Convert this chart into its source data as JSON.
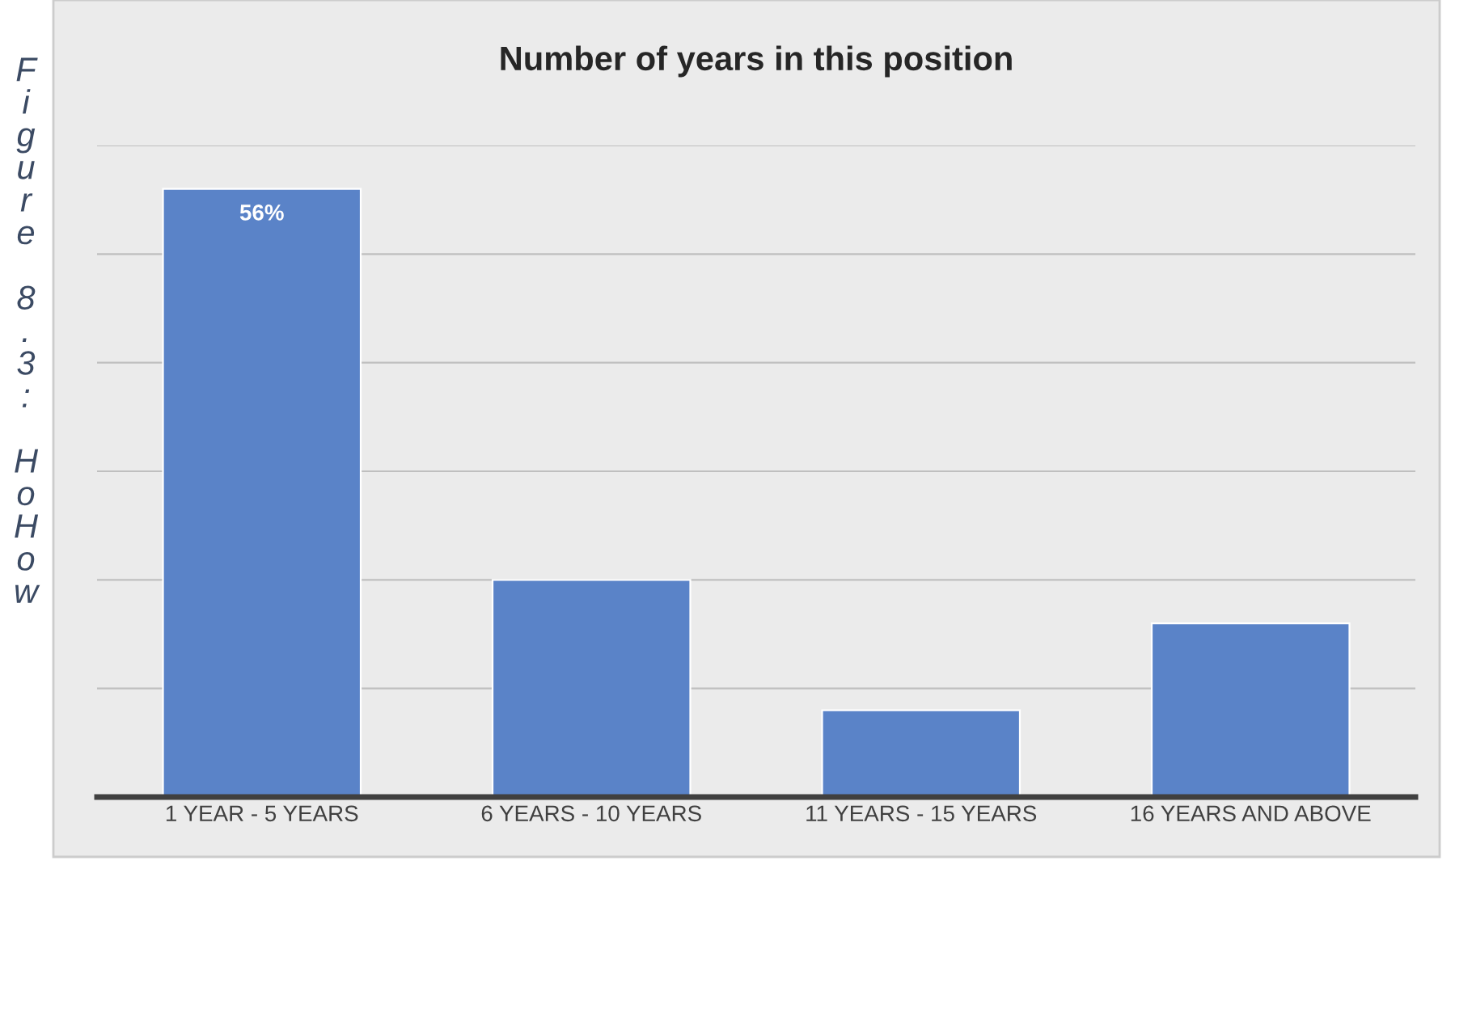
{
  "chart_data": {
    "type": "bar",
    "title": "Number of years in this position",
    "categories": [
      "1 YEAR - 5 YEARS",
      "6 YEARS - 10 YEARS",
      "11 YEARS - 15 YEARS",
      "16 YEARS AND ABOVE"
    ],
    "values": [
      56,
      20,
      8,
      16
    ],
    "color": "#5a83c8",
    "value_labels": [
      "56%",
      null,
      null,
      null
    ],
    "ylim": [
      0,
      60
    ],
    "yticks": [
      {
        "value": 0,
        "label": null
      },
      {
        "value": 10,
        "label": null
      },
      {
        "value": 20,
        "label": null
      },
      {
        "value": 30,
        "label": null
      },
      {
        "value": 40,
        "label": null
      },
      {
        "value": 50,
        "label": null
      },
      {
        "value": 60,
        "label": null
      }
    ],
    "tick_labels": "x",
    "grid": "y",
    "legend": false,
    "annotations": [
      "Figure 8.3: HoHow"
    ]
  }
}
